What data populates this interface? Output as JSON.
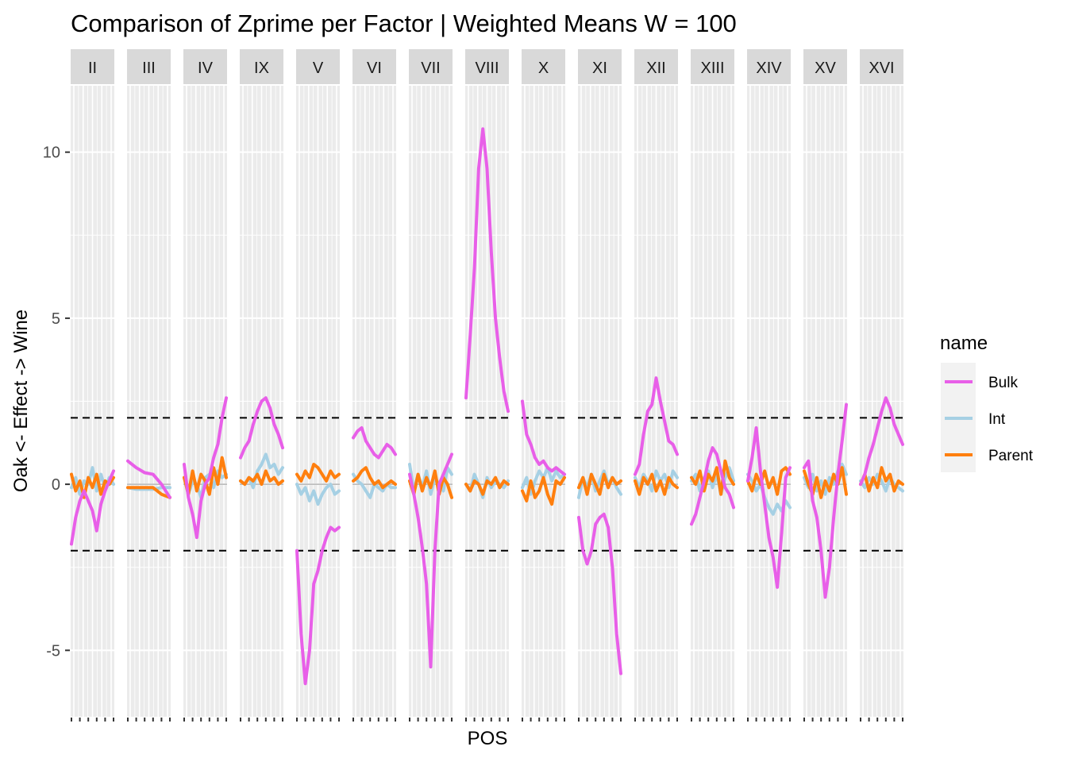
{
  "chart_data": {
    "type": "line",
    "title": "Comparison of Zprime per Factor | Weighted Means W = 100",
    "xlabel": "POS",
    "ylabel": "Oak <- Effect -> Wine",
    "ylim": [
      -7,
      12
    ],
    "yticks": [
      -5,
      0,
      5,
      10
    ],
    "threshold_lines": [
      2,
      -2
    ],
    "grid": true,
    "legend": {
      "title": "name",
      "position": "right"
    },
    "series_styles": [
      {
        "name": "Bulk",
        "color": "#E85FE8"
      },
      {
        "name": "Int",
        "color": "#A6D0E4"
      },
      {
        "name": "Parent",
        "color": "#FF7F0E"
      }
    ],
    "panels": [
      {
        "label": "II",
        "x": [
          0,
          0.1,
          0.2,
          0.3,
          0.4,
          0.5,
          0.6,
          0.7,
          0.8,
          0.9,
          1
        ],
        "series": {
          "Bulk": [
            -1.8,
            -1.0,
            -0.5,
            -0.2,
            -0.5,
            -0.8,
            -1.4,
            -0.6,
            -0.2,
            0.1,
            0.4
          ],
          "Int": [
            -0.1,
            0.2,
            -0.3,
            0.1,
            0.0,
            0.5,
            -0.2,
            0.3,
            -0.1,
            0.2,
            0.0
          ],
          "Parent": [
            0.3,
            -0.2,
            0.1,
            -0.4,
            0.2,
            -0.1,
            0.3,
            -0.3,
            0.1,
            0.0,
            0.2
          ]
        }
      },
      {
        "label": "III",
        "x": [
          0,
          0.2,
          0.4,
          0.6,
          0.8,
          1
        ],
        "series": {
          "Bulk": [
            0.7,
            0.5,
            0.35,
            0.3,
            0.0,
            -0.4
          ],
          "Int": [
            -0.1,
            -0.15,
            -0.15,
            -0.15,
            -0.1,
            -0.1
          ],
          "Parent": [
            -0.1,
            -0.1,
            -0.1,
            -0.1,
            -0.3,
            -0.4
          ]
        }
      },
      {
        "label": "IV",
        "x": [
          0,
          0.1,
          0.2,
          0.3,
          0.4,
          0.5,
          0.6,
          0.7,
          0.8,
          0.9,
          1
        ],
        "series": {
          "Bulk": [
            0.6,
            -0.4,
            -0.9,
            -1.6,
            -0.5,
            0.0,
            0.2,
            0.8,
            1.2,
            2.0,
            2.6
          ],
          "Int": [
            0.2,
            -0.3,
            0.1,
            0.0,
            -0.4,
            0.2,
            0.3,
            -0.1,
            0.4,
            0.2,
            0.3
          ],
          "Parent": [
            0.2,
            -0.3,
            0.4,
            -0.2,
            0.3,
            0.1,
            -0.3,
            0.5,
            0.0,
            0.8,
            0.2
          ]
        }
      },
      {
        "label": "IX",
        "x": [
          0,
          0.1,
          0.2,
          0.3,
          0.4,
          0.5,
          0.6,
          0.7,
          0.8,
          0.9,
          1
        ],
        "series": {
          "Bulk": [
            0.8,
            1.1,
            1.3,
            1.8,
            2.2,
            2.5,
            2.6,
            2.3,
            1.8,
            1.5,
            1.1
          ],
          "Int": [
            0.1,
            0.0,
            0.2,
            -0.1,
            0.4,
            0.6,
            0.9,
            0.5,
            0.6,
            0.3,
            0.5
          ],
          "Parent": [
            0.1,
            0.0,
            0.2,
            0.1,
            0.3,
            0.0,
            0.4,
            0.1,
            0.2,
            0.0,
            0.1
          ]
        }
      },
      {
        "label": "V",
        "x": [
          0,
          0.1,
          0.2,
          0.3,
          0.4,
          0.5,
          0.6,
          0.7,
          0.8,
          0.9,
          1
        ],
        "series": {
          "Bulk": [
            -2.0,
            -4.5,
            -6.0,
            -5.0,
            -3.0,
            -2.6,
            -2.0,
            -1.6,
            -1.3,
            -1.4,
            -1.3
          ],
          "Int": [
            0.0,
            -0.3,
            -0.1,
            -0.5,
            -0.2,
            -0.6,
            -0.3,
            -0.1,
            0.0,
            -0.3,
            -0.2
          ],
          "Parent": [
            0.3,
            0.1,
            0.4,
            0.2,
            0.6,
            0.5,
            0.3,
            0.1,
            0.4,
            0.2,
            0.3
          ]
        }
      },
      {
        "label": "VI",
        "x": [
          0,
          0.1,
          0.2,
          0.3,
          0.4,
          0.5,
          0.6,
          0.7,
          0.8,
          0.9,
          1
        ],
        "series": {
          "Bulk": [
            1.4,
            1.6,
            1.7,
            1.3,
            1.1,
            0.9,
            0.8,
            1.0,
            1.2,
            1.1,
            0.9
          ],
          "Int": [
            0.3,
            0.1,
            0.0,
            -0.2,
            -0.4,
            0.0,
            -0.1,
            -0.2,
            0.0,
            -0.1,
            -0.1
          ],
          "Parent": [
            0.1,
            0.2,
            0.4,
            0.5,
            0.2,
            0.0,
            0.1,
            -0.1,
            0.0,
            0.1,
            0.0
          ]
        }
      },
      {
        "label": "VII",
        "x": [
          0,
          0.1,
          0.2,
          0.3,
          0.4,
          0.5,
          0.6,
          0.7,
          0.8,
          0.9,
          1
        ],
        "series": {
          "Bulk": [
            0.3,
            -0.3,
            -1.0,
            -1.9,
            -3.0,
            -5.5,
            -2.0,
            0.0,
            0.3,
            0.6,
            0.9
          ],
          "Int": [
            0.6,
            -0.2,
            0.3,
            -0.1,
            0.4,
            -0.3,
            0.2,
            0.0,
            -0.2,
            0.5,
            0.3
          ],
          "Parent": [
            0.1,
            -0.3,
            0.3,
            -0.2,
            0.2,
            -0.1,
            0.4,
            -0.3,
            0.2,
            0.0,
            -0.4
          ]
        }
      },
      {
        "label": "VIII",
        "x": [
          0,
          0.1,
          0.2,
          0.3,
          0.4,
          0.5,
          0.6,
          0.7,
          0.8,
          0.9,
          1
        ],
        "series": {
          "Bulk": [
            2.6,
            4.5,
            6.5,
            9.5,
            10.7,
            9.5,
            7.0,
            5.0,
            3.8,
            2.8,
            2.2
          ],
          "Int": [
            0.0,
            -0.2,
            0.3,
            0.0,
            -0.4,
            0.2,
            -0.1,
            0.1,
            0.0,
            -0.1,
            0.1
          ],
          "Parent": [
            0.0,
            -0.2,
            0.1,
            0.0,
            -0.3,
            0.1,
            0.0,
            0.2,
            -0.1,
            0.1,
            0.0
          ]
        }
      },
      {
        "label": "X",
        "x": [
          0,
          0.1,
          0.2,
          0.3,
          0.4,
          0.5,
          0.6,
          0.7,
          0.8,
          0.9,
          1
        ],
        "series": {
          "Bulk": [
            2.5,
            1.5,
            1.2,
            0.8,
            0.6,
            0.7,
            0.5,
            0.4,
            0.5,
            0.4,
            0.3
          ],
          "Int": [
            -0.1,
            0.2,
            -0.3,
            0.1,
            0.4,
            0.2,
            0.5,
            0.1,
            0.4,
            0.2,
            0.3
          ],
          "Parent": [
            -0.2,
            -0.5,
            0.1,
            -0.4,
            -0.2,
            0.2,
            -0.3,
            -0.6,
            0.1,
            0.0,
            0.2
          ]
        }
      },
      {
        "label": "XI",
        "x": [
          0,
          0.1,
          0.2,
          0.3,
          0.4,
          0.5,
          0.6,
          0.7,
          0.8,
          0.9,
          1
        ],
        "series": {
          "Bulk": [
            -1.0,
            -2.0,
            -2.4,
            -2.0,
            -1.2,
            -1.0,
            -0.9,
            -1.3,
            -2.5,
            -4.5,
            -5.7
          ],
          "Int": [
            -0.4,
            0.2,
            -0.1,
            0.3,
            -0.2,
            0.1,
            0.4,
            0.0,
            0.2,
            -0.1,
            -0.3
          ],
          "Parent": [
            -0.1,
            0.2,
            -0.3,
            0.3,
            0.0,
            -0.3,
            0.3,
            -0.1,
            0.2,
            0.0,
            0.1
          ]
        }
      },
      {
        "label": "XII",
        "x": [
          0,
          0.1,
          0.2,
          0.3,
          0.4,
          0.5,
          0.6,
          0.7,
          0.8,
          0.9,
          1
        ],
        "series": {
          "Bulk": [
            0.3,
            0.6,
            1.5,
            2.2,
            2.4,
            3.2,
            2.5,
            1.9,
            1.3,
            1.2,
            0.9
          ],
          "Int": [
            0.2,
            -0.1,
            0.3,
            0.1,
            -0.2,
            0.4,
            0.1,
            0.3,
            -0.1,
            0.4,
            0.2
          ],
          "Parent": [
            0.1,
            -0.3,
            0.2,
            0.0,
            0.3,
            -0.2,
            0.1,
            -0.3,
            0.2,
            0.0,
            -0.1
          ]
        }
      },
      {
        "label": "XIII",
        "x": [
          0,
          0.1,
          0.2,
          0.3,
          0.4,
          0.5,
          0.6,
          0.7,
          0.8,
          0.9,
          1
        ],
        "series": {
          "Bulk": [
            -1.2,
            -0.9,
            -0.4,
            0.1,
            0.7,
            1.1,
            0.9,
            0.4,
            -0.1,
            -0.3,
            -0.7
          ],
          "Int": [
            0.1,
            0.3,
            -0.2,
            0.2,
            0.4,
            -0.1,
            0.3,
            -0.3,
            0.2,
            0.5,
            0.1
          ],
          "Parent": [
            0.2,
            0.0,
            0.4,
            -0.2,
            0.3,
            0.1,
            0.5,
            -0.3,
            0.7,
            0.2,
            0.0
          ]
        }
      },
      {
        "label": "XIV",
        "x": [
          0,
          0.1,
          0.2,
          0.3,
          0.4,
          0.5,
          0.6,
          0.7,
          0.8,
          0.9,
          1
        ],
        "series": {
          "Bulk": [
            0.1,
            0.8,
            1.7,
            0.4,
            -0.6,
            -1.6,
            -2.2,
            -3.1,
            -1.5,
            0.2,
            0.5
          ],
          "Int": [
            0.3,
            0.1,
            -0.2,
            0.0,
            -0.4,
            -0.7,
            -0.9,
            -0.6,
            -0.8,
            -0.5,
            -0.7
          ],
          "Parent": [
            0.1,
            -0.2,
            0.3,
            0.0,
            0.4,
            -0.1,
            0.2,
            -0.3,
            0.4,
            0.5,
            0.3
          ]
        }
      },
      {
        "label": "XV",
        "x": [
          0,
          0.1,
          0.2,
          0.3,
          0.4,
          0.5,
          0.6,
          0.7,
          0.8,
          0.9,
          1
        ],
        "series": {
          "Bulk": [
            0.5,
            0.7,
            -0.5,
            -1.0,
            -2.0,
            -3.4,
            -2.5,
            -1.0,
            0.3,
            1.3,
            2.4
          ],
          "Int": [
            0.2,
            -0.1,
            0.3,
            -0.2,
            0.1,
            -0.3,
            0.2,
            0.0,
            0.4,
            0.6,
            0.3
          ],
          "Parent": [
            0.4,
            0.0,
            -0.3,
            0.2,
            -0.4,
            0.1,
            -0.2,
            0.3,
            0.0,
            0.5,
            -0.3
          ]
        }
      },
      {
        "label": "XVI",
        "x": [
          0,
          0.1,
          0.2,
          0.3,
          0.4,
          0.5,
          0.6,
          0.7,
          0.8,
          0.9,
          1
        ],
        "series": {
          "Bulk": [
            0.0,
            0.3,
            0.8,
            1.2,
            1.7,
            2.2,
            2.6,
            2.3,
            1.8,
            1.5,
            1.2
          ],
          "Int": [
            0.1,
            -0.1,
            0.2,
            0.0,
            0.3,
            0.1,
            -0.2,
            0.2,
            0.0,
            -0.1,
            -0.2
          ],
          "Parent": [
            0.0,
            0.3,
            -0.2,
            0.2,
            -0.1,
            0.5,
            0.1,
            0.3,
            -0.2,
            0.1,
            0.0
          ]
        }
      }
    ]
  }
}
